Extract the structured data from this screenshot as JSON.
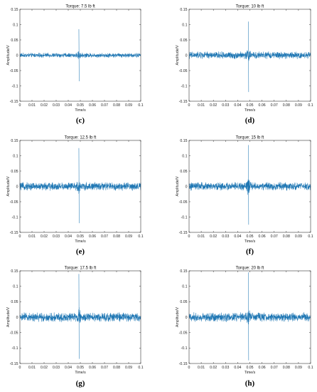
{
  "chart_data": [
    {
      "type": "line",
      "title": "Torque: 7.5 lb ft",
      "caption": "(c)",
      "xlabel": "Time/s",
      "ylabel": "Amplitude/V",
      "xlim": [
        0,
        0.1
      ],
      "ylim": [
        -0.15,
        0.15
      ],
      "xticks": [
        "0",
        "0.01",
        "0.02",
        "0.03",
        "0.04",
        "0.05",
        "0.06",
        "0.07",
        "0.08",
        "0.09",
        "0.1"
      ],
      "yticks": [
        "0.15",
        "0.1",
        "0.05",
        "0",
        "-0.05",
        "-0.1",
        "-0.15"
      ],
      "noise_amplitude": 0.005,
      "spike": {
        "x": 0.0488,
        "peak_pos": 0.085,
        "peak_neg": -0.085
      },
      "color": "#1f77b4"
    },
    {
      "type": "line",
      "title": "Torque: 10 lb ft",
      "caption": "(d)",
      "xlabel": "Time/s",
      "ylabel": "Amplitude/V",
      "xlim": [
        0,
        0.1
      ],
      "ylim": [
        -0.15,
        0.15
      ],
      "xticks": [
        "0",
        "0.01",
        "0.02",
        "0.03",
        "0.04",
        "0.05",
        "0.06",
        "0.07",
        "0.08",
        "0.09",
        "0.1"
      ],
      "yticks": [
        "0.15",
        "0.1",
        "0.05",
        "0",
        "-0.05",
        "-0.1",
        "-0.15"
      ],
      "noise_amplitude": 0.008,
      "spike": {
        "x": 0.0488,
        "peak_pos": 0.11,
        "peak_neg": -0.12
      },
      "color": "#1f77b4"
    },
    {
      "type": "line",
      "title": "Torque: 12.5 lb ft",
      "caption": "(e)",
      "xlabel": "Time/s",
      "ylabel": "Amplitude/V",
      "xlim": [
        0,
        0.1
      ],
      "ylim": [
        -0.15,
        0.15
      ],
      "xticks": [
        "0",
        "0.01",
        "0.02",
        "0.03",
        "0.04",
        "0.05",
        "0.06",
        "0.07",
        "0.08",
        "0.09",
        "0.1"
      ],
      "yticks": [
        "0.15",
        "0.1",
        "0.05",
        "0",
        "-0.05",
        "-0.1",
        "-0.15"
      ],
      "noise_amplitude": 0.009,
      "spike": {
        "x": 0.0488,
        "peak_pos": 0.125,
        "peak_neg": -0.12
      },
      "color": "#1f77b4"
    },
    {
      "type": "line",
      "title": "Torque: 15 lb ft",
      "caption": "(f)",
      "xlabel": "Time/s",
      "ylabel": "Amplitude/V",
      "xlim": [
        0,
        0.1
      ],
      "ylim": [
        -0.15,
        0.15
      ],
      "xticks": [
        "0",
        "0.01",
        "0.02",
        "0.03",
        "0.04",
        "0.05",
        "0.06",
        "0.07",
        "0.08",
        "0.09",
        "0.1"
      ],
      "yticks": [
        "0.15",
        "0.1",
        "0.05",
        "0",
        "-0.05",
        "-0.1",
        "-0.15"
      ],
      "noise_amplitude": 0.009,
      "spike": {
        "x": 0.0488,
        "peak_pos": 0.135,
        "peak_neg": -0.125
      },
      "color": "#1f77b4"
    },
    {
      "type": "line",
      "title": "Torque: 17.5 lb ft",
      "caption": "(g)",
      "xlabel": "Time/s",
      "ylabel": "Amplitude/V",
      "xlim": [
        0,
        0.1
      ],
      "ylim": [
        -0.15,
        0.15
      ],
      "xticks": [
        "0",
        "0.01",
        "0.02",
        "0.03",
        "0.04",
        "0.05",
        "0.06",
        "0.07",
        "0.08",
        "0.09",
        "0.1"
      ],
      "yticks": [
        "0.15",
        "0.1",
        "0.05",
        "0",
        "-0.05",
        "-0.1",
        "-0.15"
      ],
      "noise_amplitude": 0.01,
      "spike": {
        "x": 0.0488,
        "peak_pos": 0.14,
        "peak_neg": -0.135
      },
      "color": "#1f77b4"
    },
    {
      "type": "line",
      "title": "Torque: 20 lb ft",
      "caption": "(h)",
      "xlabel": "Time/s",
      "ylabel": "Amplitude/V",
      "xlim": [
        0,
        0.1
      ],
      "ylim": [
        -0.15,
        0.15
      ],
      "xticks": [
        "0",
        "0.01",
        "0.02",
        "0.03",
        "0.04",
        "0.05",
        "0.06",
        "0.07",
        "0.08",
        "0.09",
        "0.1"
      ],
      "yticks": [
        "0.15",
        "0.1",
        "0.05",
        "0",
        "-0.05",
        "-0.1",
        "-0.15"
      ],
      "noise_amplitude": 0.01,
      "spike": {
        "x": 0.0488,
        "peak_pos": 0.145,
        "peak_neg": -0.14
      },
      "color": "#1f77b4"
    }
  ]
}
